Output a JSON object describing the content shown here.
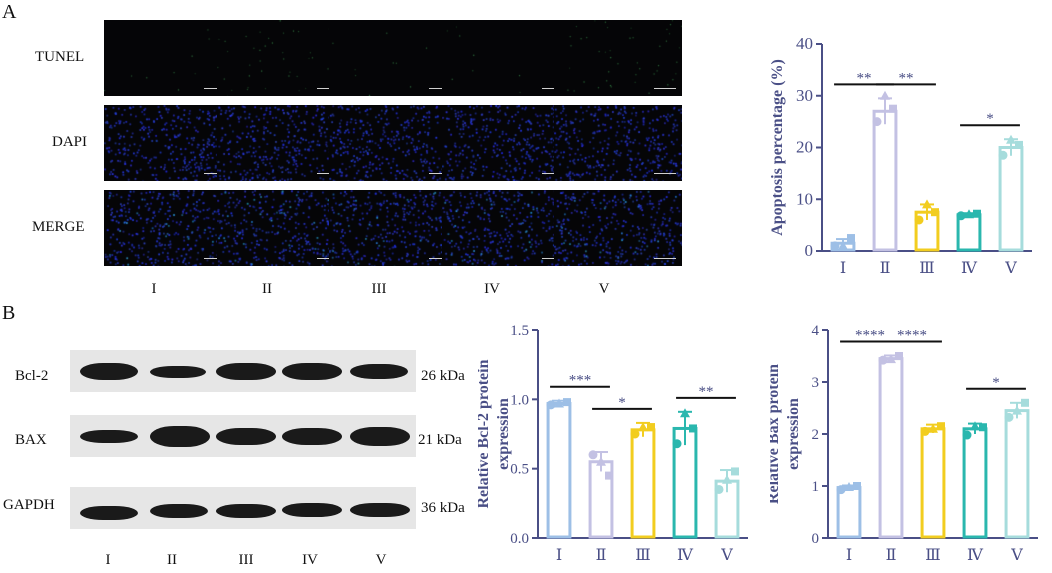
{
  "panels": {
    "a_label": "A",
    "b_label": "B"
  },
  "panel_a": {
    "row_labels": [
      "TUNEL",
      "DAPI",
      "MERGE"
    ],
    "group_labels": [
      "I",
      "II",
      "III",
      "IV",
      "V"
    ]
  },
  "panel_b": {
    "blot_labels": [
      "Bcl-2",
      "BAX",
      "GAPDH"
    ],
    "kda_labels": [
      "26 kDa",
      "21 kDa",
      "36 kDa"
    ],
    "group_labels": [
      "I",
      "II",
      "III",
      "IV",
      "V"
    ]
  },
  "chart_data": [
    {
      "type": "bar",
      "categories": [
        "Ⅰ",
        "Ⅱ",
        "Ⅲ",
        "Ⅳ",
        "Ⅴ"
      ],
      "values": [
        1.5,
        27,
        7.5,
        7,
        20
      ],
      "points": [
        [
          1,
          2.5,
          1
        ],
        [
          25,
          27.5,
          30
        ],
        [
          6,
          7.5,
          9
        ],
        [
          6.8,
          7.2,
          7.1
        ],
        [
          18.5,
          20.5,
          21.5
        ]
      ],
      "errors": [
        0.8,
        2.5,
        1.5,
        0.3,
        1.6
      ],
      "ylabel": "Apoptosis percentage (%)",
      "ylim": [
        0,
        40
      ],
      "yticks": [
        "0",
        "10",
        "20",
        "30",
        "40"
      ],
      "colors": [
        "#9dbfe6",
        "#c3c1e3",
        "#f2cd1f",
        "#2ab7ae",
        "#a6dcdc"
      ],
      "significance": [
        {
          "from": 0,
          "to": 1,
          "label": "**"
        },
        {
          "from": 1,
          "to": 2,
          "label": "**"
        },
        {
          "from": 3,
          "to": 4,
          "label": "*"
        }
      ]
    },
    {
      "type": "bar",
      "categories": [
        "Ⅰ",
        "Ⅱ",
        "Ⅲ",
        "Ⅳ",
        "Ⅴ"
      ],
      "values": [
        0.97,
        0.55,
        0.78,
        0.79,
        0.41
      ],
      "points": [
        [
          0.96,
          0.98,
          0.97
        ],
        [
          0.6,
          0.45,
          0.55
        ],
        [
          0.75,
          0.8,
          0.8
        ],
        [
          0.68,
          0.79,
          0.9
        ],
        [
          0.35,
          0.48,
          0.42
        ]
      ],
      "errors": [
        0.02,
        0.07,
        0.05,
        0.12,
        0.08
      ],
      "ylabel": "Relative Bcl-2 protein expression",
      "ylim": [
        0,
        1.5
      ],
      "yticks": [
        "0.0",
        "0.5",
        "1.0",
        "1.5"
      ],
      "colors": [
        "#9dbfe6",
        "#c3c1e3",
        "#f2cd1f",
        "#2ab7ae",
        "#a6dcdc"
      ],
      "significance": [
        {
          "from": 0,
          "to": 1,
          "label": "***"
        },
        {
          "from": 1,
          "to": 2,
          "label": "*"
        },
        {
          "from": 3,
          "to": 4,
          "label": "**"
        }
      ]
    },
    {
      "type": "bar",
      "categories": [
        "Ⅰ",
        "Ⅱ",
        "Ⅲ",
        "Ⅳ",
        "Ⅴ"
      ],
      "values": [
        0.97,
        3.45,
        2.1,
        2.1,
        2.45
      ],
      "points": [
        [
          0.93,
          1.0,
          0.98
        ],
        [
          3.42,
          3.5,
          3.44
        ],
        [
          2.05,
          2.15,
          2.1
        ],
        [
          1.98,
          2.13,
          2.15
        ],
        [
          2.32,
          2.6,
          2.45
        ]
      ],
      "errors": [
        0.04,
        0.06,
        0.08,
        0.1,
        0.15
      ],
      "ylabel": "Relative Bax protein expression",
      "ylim": [
        0,
        4
      ],
      "yticks": [
        "0",
        "1",
        "2",
        "3",
        "4"
      ],
      "colors": [
        "#9dbfe6",
        "#c3c1e3",
        "#f2cd1f",
        "#2ab7ae",
        "#a6dcdc"
      ],
      "significance": [
        {
          "from": 0,
          "to": 1,
          "label": "****"
        },
        {
          "from": 1,
          "to": 2,
          "label": "****"
        },
        {
          "from": 3,
          "to": 4,
          "label": "*"
        }
      ]
    }
  ]
}
